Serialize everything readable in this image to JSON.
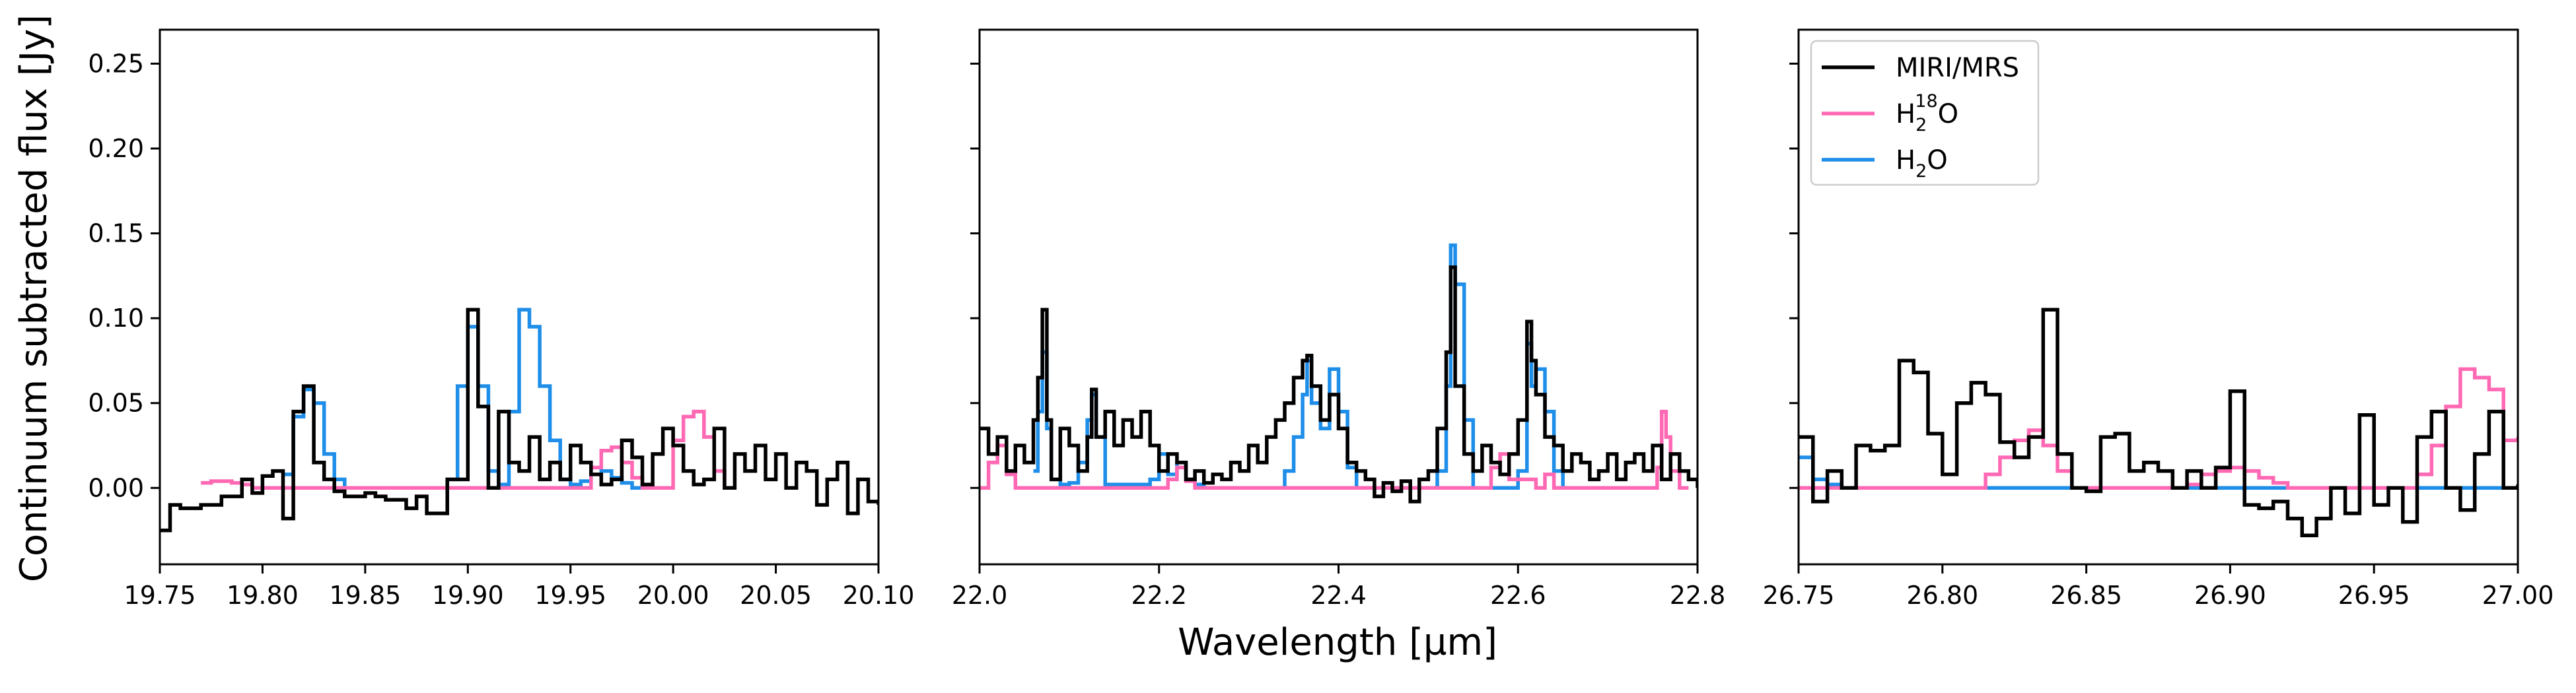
{
  "figure": {
    "ylabel": "Continuum subtracted flux [Jy]",
    "xlabel": "Wavelength [µm]",
    "legend": [
      {
        "label": "MIRI/MRS",
        "color": "#000000"
      },
      {
        "label": "H2 18O",
        "base": "H",
        "sub": "2",
        "sup": "18",
        "tail": "O",
        "color": "#ff69b4"
      },
      {
        "label": "H2O",
        "base": "H",
        "sub": "2",
        "tail": "O",
        "color": "#1e8ee9"
      }
    ]
  },
  "colors": {
    "miri": "#000000",
    "h218o": "#ff69b4",
    "h2o": "#1e8ee9"
  },
  "chart_data": [
    {
      "type": "line",
      "panel": "left",
      "xlim": [
        19.75,
        20.1
      ],
      "ylim": [
        -0.045,
        0.27
      ],
      "xticks": [
        19.75,
        19.8,
        19.85,
        19.9,
        19.95,
        20.0,
        20.05,
        20.1
      ],
      "xtick_labels": [
        "19.75",
        "19.80",
        "19.85",
        "19.90",
        "19.95",
        "20.00",
        "20.05",
        "20.10"
      ],
      "yticks": [
        0.0,
        0.05,
        0.1,
        0.15,
        0.2,
        0.25
      ],
      "ytick_labels": [
        "0.00",
        "0.05",
        "0.10",
        "0.15",
        "0.20",
        "0.25"
      ],
      "series": [
        {
          "name": "MIRI/MRS",
          "color": "#000000",
          "x": [
            19.75,
            19.755,
            19.76,
            19.77,
            19.78,
            19.79,
            19.795,
            19.8,
            19.805,
            19.81,
            19.815,
            19.82,
            19.825,
            19.83,
            19.835,
            19.84,
            19.85,
            19.855,
            19.86,
            19.87,
            19.875,
            19.88,
            19.89,
            19.9,
            19.905,
            19.91,
            19.915,
            19.92,
            19.925,
            19.93,
            19.935,
            19.94,
            19.945,
            19.95,
            19.955,
            19.96,
            19.965,
            19.97,
            19.975,
            19.98,
            19.985,
            19.99,
            19.995,
            20.0,
            20.005,
            20.01,
            20.015,
            20.02,
            20.025,
            20.03,
            20.035,
            20.04,
            20.045,
            20.05,
            20.055,
            20.06,
            20.065,
            20.07,
            20.075,
            20.08,
            20.085,
            20.09,
            20.095,
            20.1
          ],
          "y": [
            -0.025,
            -0.01,
            -0.012,
            -0.01,
            -0.005,
            0.005,
            -0.003,
            0.007,
            0.01,
            -0.018,
            0.045,
            0.06,
            0.015,
            0.005,
            -0.002,
            -0.005,
            -0.003,
            -0.005,
            -0.007,
            -0.012,
            -0.005,
            -0.015,
            0.005,
            0.105,
            0.048,
            0.0,
            0.045,
            0.015,
            0.01,
            0.03,
            0.005,
            0.015,
            0.005,
            0.025,
            0.015,
            0.008,
            0.002,
            0.005,
            0.028,
            0.018,
            0.002,
            0.02,
            0.035,
            0.025,
            0.01,
            0.002,
            0.005,
            0.035,
            0.0,
            0.02,
            0.01,
            0.025,
            0.005,
            0.02,
            0.0,
            0.015,
            0.01,
            -0.01,
            0.005,
            0.015,
            -0.015,
            0.005,
            -0.008,
            -0.01
          ]
        },
        {
          "name": "H2 18O",
          "color": "#ff69b4",
          "x": [
            19.77,
            19.775,
            19.78,
            19.785,
            19.79,
            19.795,
            19.96,
            19.965,
            19.97,
            19.975,
            19.98,
            19.985,
            20.0,
            20.005,
            20.01,
            20.015,
            20.02,
            20.025
          ],
          "y": [
            0.003,
            0.004,
            0.004,
            0.003,
            0.002,
            0.0,
            0.012,
            0.022,
            0.024,
            0.015,
            0.006,
            0.0,
            0.028,
            0.042,
            0.045,
            0.03,
            0.01,
            0.0
          ]
        },
        {
          "name": "H2O",
          "color": "#1e8ee9",
          "x": [
            19.81,
            19.815,
            19.82,
            19.825,
            19.83,
            19.835,
            19.84,
            19.89,
            19.895,
            19.9,
            19.905,
            19.91,
            19.915,
            19.92,
            19.925,
            19.93,
            19.935,
            19.94,
            19.945,
            19.95,
            19.955,
            19.96,
            19.965,
            19.97,
            19.975,
            19.98
          ],
          "y": [
            0.008,
            0.042,
            0.058,
            0.05,
            0.02,
            0.005,
            0.0,
            0.005,
            0.06,
            0.095,
            0.06,
            0.01,
            0.002,
            0.045,
            0.105,
            0.095,
            0.06,
            0.028,
            0.005,
            0.002,
            0.004,
            0.008,
            0.01,
            0.006,
            0.003,
            0.0
          ]
        }
      ]
    },
    {
      "type": "line",
      "panel": "middle",
      "xlim": [
        22.0,
        22.8
      ],
      "ylim": [
        -0.045,
        0.27
      ],
      "xticks": [
        22.0,
        22.2,
        22.4,
        22.6,
        22.8
      ],
      "xtick_labels": [
        "22.0",
        "22.2",
        "22.4",
        "22.6",
        "22.8"
      ],
      "yticks": [
        0.0,
        0.05,
        0.1,
        0.15,
        0.2,
        0.25
      ],
      "ytick_labels": [
        "",
        "",
        "",
        "",
        "",
        ""
      ],
      "series": [
        {
          "name": "MIRI/MRS",
          "color": "#000000",
          "x": [
            22.0,
            22.01,
            22.02,
            22.03,
            22.04,
            22.05,
            22.06,
            22.065,
            22.07,
            22.075,
            22.08,
            22.09,
            22.1,
            22.11,
            22.12,
            22.125,
            22.13,
            22.14,
            22.15,
            22.16,
            22.17,
            22.18,
            22.19,
            22.2,
            22.21,
            22.22,
            22.23,
            22.24,
            22.25,
            22.26,
            22.27,
            22.28,
            22.29,
            22.3,
            22.31,
            22.32,
            22.33,
            22.34,
            22.35,
            22.36,
            22.365,
            22.37,
            22.38,
            22.39,
            22.4,
            22.41,
            22.42,
            22.43,
            22.44,
            22.45,
            22.46,
            22.47,
            22.48,
            22.49,
            22.5,
            22.51,
            22.52,
            22.525,
            22.53,
            22.54,
            22.55,
            22.56,
            22.57,
            22.58,
            22.59,
            22.6,
            22.61,
            22.615,
            22.62,
            22.63,
            22.64,
            22.65,
            22.66,
            22.67,
            22.68,
            22.69,
            22.7,
            22.71,
            22.72,
            22.73,
            22.74,
            22.75,
            22.76,
            22.77,
            22.78,
            22.79,
            22.8
          ],
          "y": [
            0.035,
            0.02,
            0.03,
            0.01,
            0.025,
            0.015,
            0.04,
            0.065,
            0.105,
            0.04,
            0.005,
            0.035,
            0.025,
            0.01,
            0.03,
            0.058,
            0.03,
            0.045,
            0.025,
            0.04,
            0.03,
            0.045,
            0.025,
            0.01,
            0.02,
            0.015,
            0.005,
            0.01,
            0.003,
            0.008,
            0.005,
            0.015,
            0.01,
            0.025,
            0.015,
            0.03,
            0.04,
            0.05,
            0.065,
            0.075,
            0.078,
            0.06,
            0.04,
            0.055,
            0.035,
            0.015,
            0.01,
            0.005,
            -0.005,
            0.003,
            -0.002,
            0.004,
            -0.008,
            0.005,
            0.01,
            0.035,
            0.08,
            0.13,
            0.06,
            0.02,
            0.01,
            0.025,
            0.015,
            0.008,
            0.02,
            0.04,
            0.098,
            0.075,
            0.055,
            0.03,
            0.025,
            0.01,
            0.02,
            0.015,
            0.005,
            0.01,
            0.02,
            0.005,
            0.015,
            0.02,
            0.01,
            0.025,
            0.005,
            0.02,
            0.01,
            0.005,
            0.0
          ]
        },
        {
          "name": "H2 18O",
          "color": "#ff69b4",
          "x": [
            22.0,
            22.01,
            22.02,
            22.03,
            22.04,
            22.2,
            22.21,
            22.22,
            22.23,
            22.24,
            22.56,
            22.57,
            22.58,
            22.59,
            22.62,
            22.63,
            22.64,
            22.75,
            22.755,
            22.76,
            22.765,
            22.77,
            22.78
          ],
          "y": [
            0.0,
            0.015,
            0.025,
            0.008,
            0.0,
            0.0,
            0.005,
            0.012,
            0.004,
            0.0,
            0.0,
            0.012,
            0.02,
            0.005,
            0.0,
            0.008,
            0.0,
            0.0,
            0.012,
            0.045,
            0.03,
            0.01,
            0.0
          ]
        },
        {
          "name": "H2O",
          "color": "#1e8ee9",
          "x": [
            22.06,
            22.065,
            22.07,
            22.075,
            22.08,
            22.09,
            22.1,
            22.11,
            22.12,
            22.125,
            22.13,
            22.14,
            22.19,
            22.2,
            22.21,
            22.22,
            22.23,
            22.24,
            22.25,
            22.34,
            22.35,
            22.36,
            22.365,
            22.37,
            22.38,
            22.39,
            22.4,
            22.41,
            22.42,
            22.51,
            22.52,
            22.525,
            22.53,
            22.54,
            22.55,
            22.6,
            22.61,
            22.615,
            22.62,
            22.63,
            22.64,
            22.65
          ],
          "y": [
            0.01,
            0.045,
            0.08,
            0.035,
            0.005,
            0.002,
            0.003,
            0.015,
            0.04,
            0.055,
            0.03,
            0.002,
            0.005,
            0.02,
            0.008,
            0.015,
            0.005,
            0.002,
            0.0,
            0.01,
            0.03,
            0.055,
            0.075,
            0.05,
            0.035,
            0.07,
            0.045,
            0.012,
            0.0,
            0.01,
            0.06,
            0.143,
            0.12,
            0.04,
            0.0,
            0.01,
            0.085,
            0.06,
            0.07,
            0.045,
            0.01,
            0.0
          ]
        }
      ]
    },
    {
      "type": "line",
      "panel": "right",
      "xlim": [
        26.75,
        27.0
      ],
      "ylim": [
        -0.045,
        0.27
      ],
      "xticks": [
        26.75,
        26.8,
        26.85,
        26.9,
        26.95,
        27.0
      ],
      "xtick_labels": [
        "26.75",
        "26.80",
        "26.85",
        "26.90",
        "26.95",
        "27.00"
      ],
      "yticks": [
        0.0,
        0.05,
        0.1,
        0.15,
        0.2,
        0.25
      ],
      "ytick_labels": [
        "",
        "",
        "",
        "",
        "",
        ""
      ],
      "series": [
        {
          "name": "MIRI/MRS",
          "color": "#000000",
          "x": [
            26.75,
            26.755,
            26.76,
            26.765,
            26.77,
            26.775,
            26.78,
            26.785,
            26.79,
            26.795,
            26.8,
            26.805,
            26.81,
            26.815,
            26.82,
            26.825,
            26.83,
            26.835,
            26.84,
            26.845,
            26.85,
            26.855,
            26.86,
            26.865,
            26.87,
            26.875,
            26.88,
            26.885,
            26.89,
            26.895,
            26.9,
            26.905,
            26.91,
            26.915,
            26.92,
            26.925,
            26.93,
            26.935,
            26.94,
            26.945,
            26.95,
            26.955,
            26.96,
            26.965,
            26.97,
            26.975,
            26.98,
            26.985,
            26.99,
            26.995,
            27.0
          ],
          "y": [
            0.03,
            -0.008,
            0.01,
            0.0,
            0.025,
            0.022,
            0.025,
            0.075,
            0.068,
            0.032,
            0.008,
            0.05,
            0.062,
            0.055,
            0.027,
            0.018,
            0.03,
            0.105,
            0.02,
            0.0,
            -0.002,
            0.03,
            0.032,
            0.01,
            0.015,
            0.01,
            0.0,
            0.01,
            0.0,
            0.012,
            0.057,
            -0.01,
            -0.012,
            -0.008,
            -0.018,
            -0.028,
            -0.018,
            0.0,
            -0.015,
            0.043,
            -0.01,
            0.0,
            -0.02,
            0.03,
            0.045,
            0.0,
            -0.013,
            0.02,
            0.045,
            0.0,
            0.002
          ]
        },
        {
          "name": "H2 18O",
          "color": "#ff69b4",
          "x": [
            26.75,
            26.81,
            26.815,
            26.82,
            26.825,
            26.83,
            26.835,
            26.84,
            26.845,
            26.85,
            26.88,
            26.885,
            26.89,
            26.895,
            26.9,
            26.905,
            26.91,
            26.915,
            26.92,
            26.96,
            26.965,
            26.97,
            26.975,
            26.98,
            26.985,
            26.99,
            26.995,
            27.0
          ],
          "y": [
            0.0,
            0.0,
            0.008,
            0.018,
            0.028,
            0.034,
            0.025,
            0.01,
            0.0,
            0.0,
            0.0,
            0.002,
            0.008,
            0.01,
            0.012,
            0.01,
            0.006,
            0.003,
            0.0,
            0.0,
            0.008,
            0.025,
            0.048,
            0.07,
            0.065,
            0.058,
            0.028,
            0.03
          ]
        },
        {
          "name": "H2O",
          "color": "#1e8ee9",
          "x": [
            26.75,
            26.755,
            26.76,
            26.765,
            27.0
          ],
          "y": [
            0.018,
            0.005,
            0.002,
            0.0,
            0.0
          ]
        }
      ]
    }
  ]
}
